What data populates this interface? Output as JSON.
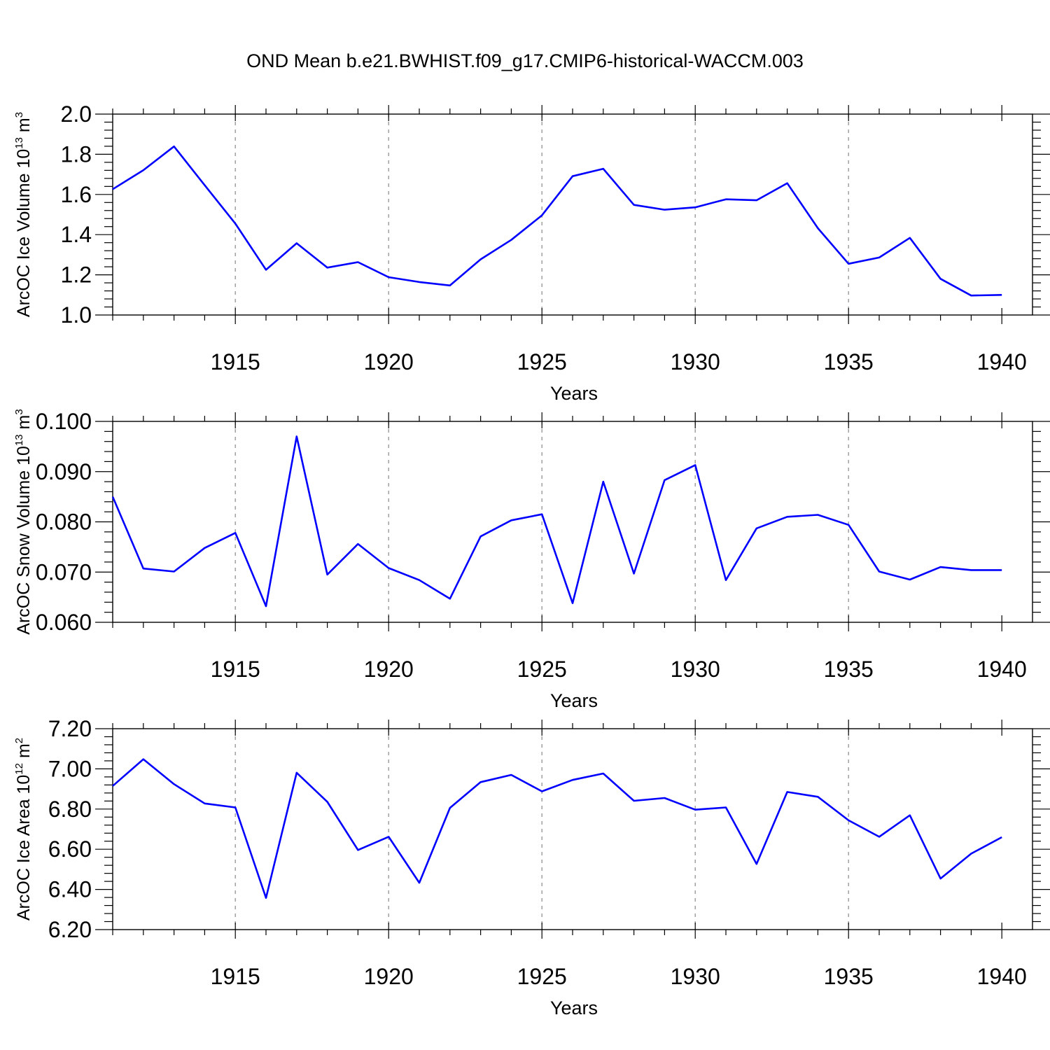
{
  "title": "OND Mean b.e21.BWHIST.f09_g17.CMIP6-historical-WACCM.003",
  "colors": {
    "series": "#0000ff",
    "axis": "#000000",
    "grid": "#9a9a9a"
  },
  "chart_data": [
    {
      "type": "line",
      "ylabel": "ArcOC Ice Volume 10",
      "ylabel_exp": "13",
      "ylabel_unit": " m",
      "ylabel_unit_exp": "3",
      "xlabel": "Years",
      "xlim": [
        1911,
        1941
      ],
      "ylim": [
        1.0,
        2.0
      ],
      "yticks": [
        1.0,
        1.2,
        1.4,
        1.6,
        1.8,
        2.0
      ],
      "ytick_labels": [
        "1.0",
        "1.2",
        "1.4",
        "1.6",
        "1.8",
        "2.0"
      ],
      "xticks": [
        1915,
        1920,
        1925,
        1930,
        1935,
        1940
      ],
      "xtick_labels": [
        "1915",
        "1920",
        "1925",
        "1930",
        "1935",
        "1940"
      ],
      "grid_x": [
        1915,
        1920,
        1925,
        1930,
        1935
      ],
      "x": [
        1911,
        1912,
        1913,
        1914,
        1915,
        1916,
        1917,
        1918,
        1919,
        1920,
        1921,
        1922,
        1923,
        1924,
        1925,
        1926,
        1927,
        1928,
        1929,
        1930,
        1931,
        1932,
        1933,
        1934,
        1935,
        1936,
        1937,
        1938,
        1939,
        1940
      ],
      "values": [
        1.626,
        1.721,
        1.839,
        1.646,
        1.455,
        1.225,
        1.357,
        1.236,
        1.263,
        1.188,
        1.164,
        1.147,
        1.277,
        1.374,
        1.496,
        1.691,
        1.728,
        1.548,
        1.524,
        1.536,
        1.576,
        1.571,
        1.656,
        1.432,
        1.255,
        1.286,
        1.384,
        1.18,
        1.097,
        1.1
      ]
    },
    {
      "type": "line",
      "ylabel": "ArcOC Snow Volume 10",
      "ylabel_exp": "13",
      "ylabel_unit": " m",
      "ylabel_unit_exp": "3",
      "xlabel": "Years",
      "xlim": [
        1911,
        1941
      ],
      "ylim": [
        0.06,
        0.1
      ],
      "yticks": [
        0.06,
        0.07,
        0.08,
        0.09,
        0.1
      ],
      "ytick_labels": [
        "0.060",
        "0.070",
        "0.080",
        "0.090",
        "0.100"
      ],
      "xticks": [
        1915,
        1920,
        1925,
        1930,
        1935,
        1940
      ],
      "xtick_labels": [
        "1915",
        "1920",
        "1925",
        "1930",
        "1935",
        "1940"
      ],
      "grid_x": [
        1915,
        1920,
        1925,
        1930,
        1935
      ],
      "x": [
        1911,
        1912,
        1913,
        1914,
        1915,
        1916,
        1917,
        1918,
        1919,
        1920,
        1921,
        1922,
        1923,
        1924,
        1925,
        1926,
        1927,
        1928,
        1929,
        1930,
        1931,
        1932,
        1933,
        1934,
        1935,
        1936,
        1937,
        1938,
        1939,
        1940
      ],
      "values": [
        0.085,
        0.0707,
        0.0701,
        0.0748,
        0.0778,
        0.0632,
        0.097,
        0.0695,
        0.0756,
        0.0708,
        0.0684,
        0.0647,
        0.0771,
        0.0803,
        0.0815,
        0.0638,
        0.088,
        0.0697,
        0.0883,
        0.0913,
        0.0684,
        0.0787,
        0.081,
        0.0814,
        0.0794,
        0.0701,
        0.0685,
        0.071,
        0.0704,
        0.0704
      ]
    },
    {
      "type": "line",
      "ylabel": "ArcOC Ice Area 10",
      "ylabel_exp": "12",
      "ylabel_unit": " m",
      "ylabel_unit_exp": "2",
      "xlabel": "Years",
      "xlim": [
        1911,
        1941
      ],
      "ylim": [
        6.2,
        7.2
      ],
      "yticks": [
        6.2,
        6.4,
        6.6,
        6.8,
        7.0,
        7.2
      ],
      "ytick_labels": [
        "6.20",
        "6.40",
        "6.60",
        "6.80",
        "7.00",
        "7.20"
      ],
      "xticks": [
        1915,
        1920,
        1925,
        1930,
        1935,
        1940
      ],
      "xtick_labels": [
        "1915",
        "1920",
        "1925",
        "1930",
        "1935",
        "1940"
      ],
      "grid_x": [
        1915,
        1920,
        1925,
        1930,
        1935
      ],
      "x": [
        1911,
        1912,
        1913,
        1914,
        1915,
        1916,
        1917,
        1918,
        1919,
        1920,
        1921,
        1922,
        1923,
        1924,
        1925,
        1926,
        1927,
        1928,
        1929,
        1930,
        1931,
        1932,
        1933,
        1934,
        1935,
        1936,
        1937,
        1938,
        1939,
        1940
      ],
      "values": [
        6.915,
        7.048,
        6.924,
        6.828,
        6.808,
        6.358,
        6.981,
        6.836,
        6.596,
        6.662,
        6.433,
        6.806,
        6.934,
        6.97,
        6.888,
        6.945,
        6.977,
        6.841,
        6.855,
        6.797,
        6.808,
        6.527,
        6.885,
        6.861,
        6.744,
        6.662,
        6.769,
        6.454,
        6.578,
        6.66
      ]
    }
  ]
}
